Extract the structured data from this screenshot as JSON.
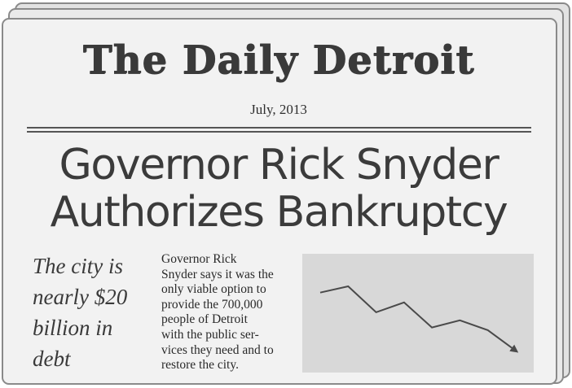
{
  "newspaper": {
    "masthead": "The Daily Detroit",
    "date": "July, 2013",
    "headline": {
      "line1": "Governor Rick Snyder",
      "line2": "Authorizes Bankruptcy"
    },
    "subhead": {
      "lines": [
        "The city is",
        "nearly $20",
        "billion in",
        "debt"
      ]
    },
    "body": {
      "lines": [
        "Governor Rick",
        "Snyder says it was the",
        "only viable option to",
        "provide the 700,000",
        "people of Detroit",
        "with the public ser-",
        "vices they need and to",
        "restore the city."
      ]
    },
    "chart_data": {
      "type": "line",
      "x": [
        1,
        2,
        3,
        4,
        5,
        6,
        7,
        8
      ],
      "series": [
        {
          "values": [
            7.3,
            8.0,
            5.1,
            6.2,
            3.4,
            4.2,
            3.1,
            0.8
          ]
        }
      ],
      "ylim": [
        0,
        10
      ],
      "grid": false,
      "line_color": "#4a4a4a",
      "background": "#d8d8d8",
      "end_marker": "arrow"
    }
  }
}
